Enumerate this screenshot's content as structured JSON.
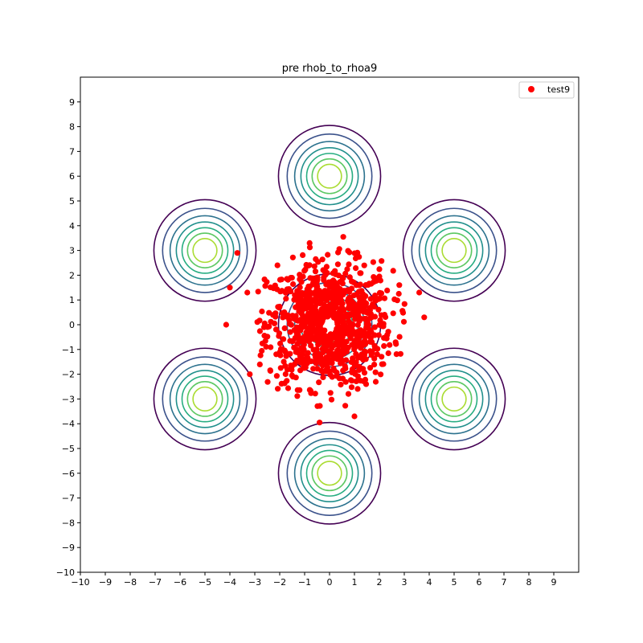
{
  "chart_data": {
    "type": "scatter",
    "title": "pre rhob_to_rhoa9",
    "xlabel": "",
    "ylabel": "",
    "xlim": [
      -10,
      10
    ],
    "ylim": [
      -10,
      10
    ],
    "x_ticks": [
      -10,
      -9,
      -8,
      -7,
      -6,
      -5,
      -4,
      -3,
      -2,
      -1,
      0,
      1,
      2,
      3,
      4,
      5,
      6,
      7,
      8,
      9
    ],
    "y_ticks": [
      -10,
      -9,
      -8,
      -7,
      -6,
      -5,
      -4,
      -3,
      -2,
      -1,
      0,
      1,
      2,
      3,
      4,
      5,
      6,
      7,
      8,
      9
    ],
    "x_tick_labels": [
      "−10",
      "−9",
      "−8",
      "−7",
      "−6",
      "−5",
      "−4",
      "−3",
      "−2",
      "−1",
      "0",
      "1",
      "2",
      "3",
      "4",
      "5",
      "6",
      "7",
      "8",
      "9"
    ],
    "y_tick_labels": [
      "−10",
      "−9",
      "−8",
      "−7",
      "−6",
      "−5",
      "−4",
      "−3",
      "−2",
      "−1",
      "0",
      "1",
      "2",
      "3",
      "4",
      "5",
      "6",
      "7",
      "8",
      "9"
    ],
    "grid": false,
    "legend": {
      "position": "top-right",
      "entries": [
        {
          "label": "test9",
          "color": "#ff0000",
          "marker": "circle"
        }
      ]
    },
    "contours": {
      "centers": [
        [
          0,
          0
        ],
        [
          0,
          6
        ],
        [
          5,
          3
        ],
        [
          5,
          -3
        ],
        [
          0,
          -6
        ],
        [
          -5,
          -3
        ],
        [
          -5,
          3
        ]
      ],
      "level_radii": [
        2.05,
        1.7,
        1.4,
        1.15,
        0.92,
        0.7,
        0.48
      ],
      "level_colors": [
        "#440154",
        "#3b528b",
        "#2c728e",
        "#21908c",
        "#27ad81",
        "#5dc863",
        "#aadc32"
      ]
    },
    "series": [
      {
        "name": "test9",
        "color": "#ff0000",
        "outliers": [
          [
            0.55,
            3.55
          ],
          [
            -0.8,
            3.3
          ],
          [
            -3.7,
            2.9
          ],
          [
            -4,
            1.5
          ],
          [
            -4.15,
            0
          ],
          [
            -3.2,
            -2
          ],
          [
            -0.4,
            -3.95
          ],
          [
            1,
            -3.7
          ],
          [
            3.6,
            1.3
          ],
          [
            3.8,
            0.3
          ],
          [
            -3.3,
            1.3
          ],
          [
            2.8,
            1.6
          ]
        ],
        "cluster": {
          "center": [
            0,
            0
          ],
          "count": 900,
          "max_radius": 3.4,
          "inner_gap_radius": 0.3
        }
      }
    ]
  }
}
